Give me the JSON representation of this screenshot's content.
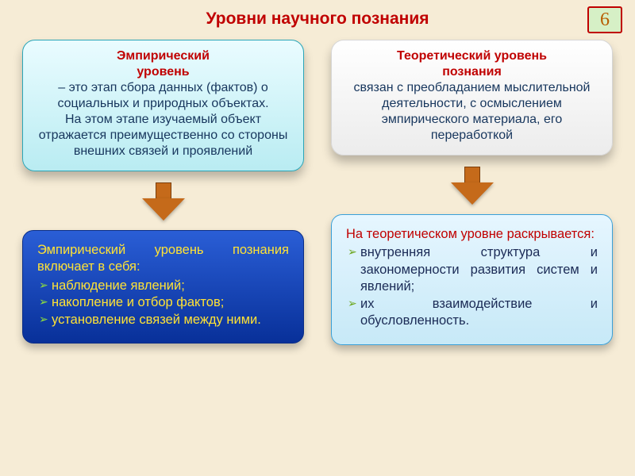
{
  "slide": {
    "background": "#f6ecd6",
    "title": {
      "text": "Уровни научного познания",
      "color": "#c00000"
    },
    "badge": {
      "text": "6",
      "bg": "#d6f0c6",
      "border": "#c00000",
      "color": "#b85c00"
    }
  },
  "left": {
    "top": {
      "bg_from": "#eafcff",
      "bg_to": "#b9ecf2",
      "border": "#2aa6b8",
      "heading_color": "#c00000",
      "text_color": "#17365d",
      "heading_l1": "Эмпирический",
      "heading_l2": "уровень",
      "body": "– это этап сбора данных (фактов) о социальных и природных объектах.\nНа этом этапе изучаемый объект отражается преимущественно со стороны внешних связей и проявлений"
    },
    "arrow": {
      "fill": "#c56a1a",
      "border": "#7a3d0a"
    },
    "bottom": {
      "bg_from": "#2a5ed6",
      "bg_to": "#083099",
      "border": "#0a2d86",
      "text_color": "#ffe235",
      "bullet_color": "#8fe03a",
      "lead": "Эмпирический уровень познания включает в себя:",
      "items": [
        "наблюдение явлений;",
        "накопление и отбор фактов;",
        "установление связей между ними."
      ]
    }
  },
  "right": {
    "top": {
      "bg_from": "#ffffff",
      "bg_to": "#ececec",
      "border": "#d6d6d6",
      "heading_color": "#c00000",
      "text_color": "#17365d",
      "heading_l1": "Теоретический уровень",
      "heading_l2": "познания",
      "body": "связан с преобладанием мыслительной деятельности, с осмыслением эмпирического материала, его переработкой"
    },
    "arrow": {
      "fill": "#c56a1a",
      "border": "#7a3d0a"
    },
    "bottom": {
      "bg_from": "#e6f6ff",
      "bg_to": "#c7e9f7",
      "border": "#3aa0d8",
      "heading_color": "#c00000",
      "text_color": "#1b2b56",
      "bullet_color": "#6aa519",
      "lead": "На теоретическом уровне раскрывается:",
      "items": [
        "внутренняя структура и закономерности развития систем и явлений;",
        "их взаимодействие и обусловленность."
      ]
    }
  }
}
